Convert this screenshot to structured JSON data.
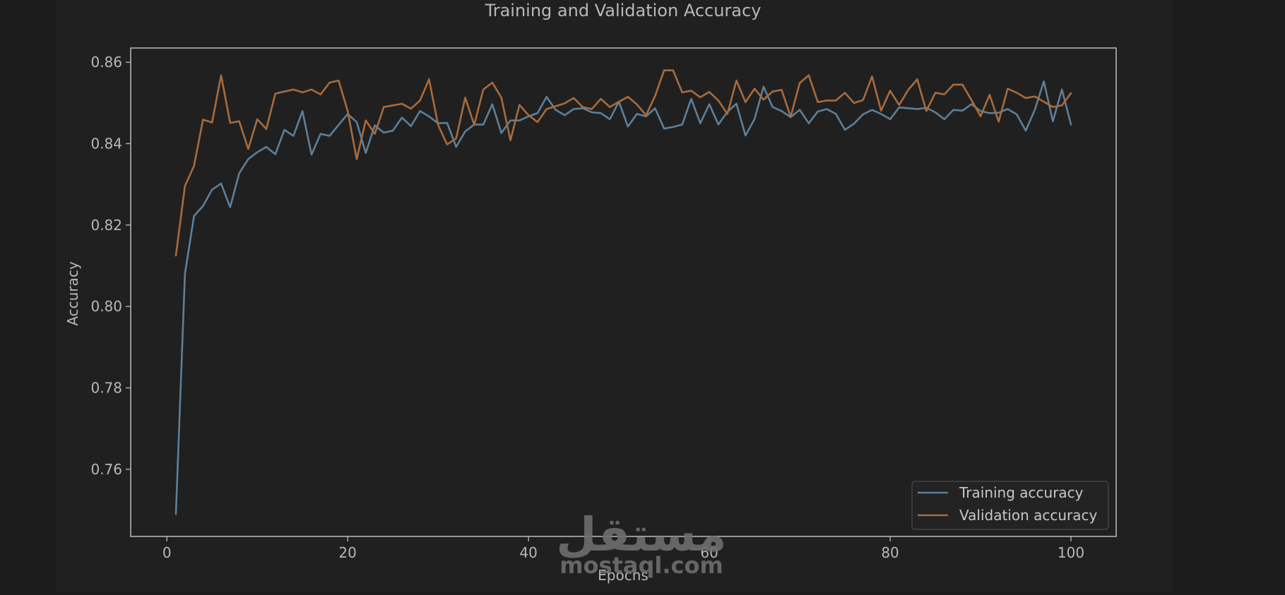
{
  "watermark": {
    "arabic": "مستقل",
    "latin": "mostaql.com"
  },
  "chart_data": {
    "type": "line",
    "title": "Training and Validation Accuracy",
    "xlabel": "Epochs",
    "ylabel": "Accuracy",
    "xlim": [
      -4,
      105
    ],
    "ylim": [
      0.7435,
      0.8635
    ],
    "xticks": [
      0,
      20,
      40,
      60,
      80,
      100
    ],
    "yticks": [
      0.76,
      0.78,
      0.8,
      0.82,
      0.84,
      0.86
    ],
    "ytick_labels": [
      "0.76",
      "0.78",
      "0.80",
      "0.82",
      "0.84",
      "0.86"
    ],
    "grid": false,
    "legend_position": "lower-right",
    "x": [
      1,
      2,
      3,
      4,
      5,
      6,
      7,
      8,
      9,
      10,
      11,
      12,
      13,
      14,
      15,
      16,
      17,
      18,
      19,
      20,
      21,
      22,
      23,
      24,
      25,
      26,
      27,
      28,
      29,
      30,
      31,
      32,
      33,
      34,
      35,
      36,
      37,
      38,
      39,
      40,
      41,
      42,
      43,
      44,
      45,
      46,
      47,
      48,
      49,
      50,
      51,
      52,
      53,
      54,
      55,
      56,
      57,
      58,
      59,
      60,
      61,
      62,
      63,
      64,
      65,
      66,
      67,
      68,
      69,
      70,
      71,
      72,
      73,
      74,
      75,
      76,
      77,
      78,
      79,
      80,
      81,
      82,
      83,
      84,
      85,
      86,
      87,
      88,
      89,
      90,
      91,
      92,
      93,
      94,
      95,
      96,
      97,
      98,
      99,
      100
    ],
    "series": [
      {
        "name": "Training accuracy",
        "color": "#5d7f99",
        "values": [
          0.749,
          0.808,
          0.8222,
          0.8247,
          0.8287,
          0.8302,
          0.8244,
          0.8327,
          0.8362,
          0.8379,
          0.8392,
          0.8374,
          0.8434,
          0.8419,
          0.848,
          0.8373,
          0.8424,
          0.8419,
          0.8446,
          0.8473,
          0.8453,
          0.8377,
          0.8445,
          0.8427,
          0.8432,
          0.8464,
          0.8443,
          0.848,
          0.8467,
          0.845,
          0.8451,
          0.8392,
          0.843,
          0.8447,
          0.8447,
          0.8497,
          0.8426,
          0.8457,
          0.8457,
          0.8467,
          0.8475,
          0.8515,
          0.8483,
          0.847,
          0.8485,
          0.8487,
          0.8477,
          0.8475,
          0.846,
          0.8503,
          0.8442,
          0.8473,
          0.8467,
          0.8487,
          0.8437,
          0.8441,
          0.8447,
          0.851,
          0.845,
          0.8497,
          0.8447,
          0.8478,
          0.8498,
          0.842,
          0.846,
          0.854,
          0.849,
          0.848,
          0.8465,
          0.8483,
          0.845,
          0.8479,
          0.8485,
          0.8473,
          0.8434,
          0.8449,
          0.8472,
          0.8483,
          0.8473,
          0.846,
          0.8489,
          0.8487,
          0.8485,
          0.8488,
          0.8477,
          0.846,
          0.8483,
          0.8481,
          0.8497,
          0.848,
          0.8475,
          0.8476,
          0.8485,
          0.8472,
          0.8432,
          0.8483,
          0.8553,
          0.8455,
          0.8533,
          0.8447
        ]
      },
      {
        "name": "Validation accuracy",
        "color": "#a86b3c",
        "values": [
          0.8125,
          0.8296,
          0.8345,
          0.8459,
          0.8452,
          0.8568,
          0.8451,
          0.8455,
          0.8387,
          0.846,
          0.8436,
          0.8523,
          0.8528,
          0.8533,
          0.8526,
          0.8533,
          0.8521,
          0.855,
          0.8555,
          0.848,
          0.8362,
          0.8457,
          0.8424,
          0.849,
          0.8494,
          0.8498,
          0.8486,
          0.8506,
          0.8558,
          0.8446,
          0.8398,
          0.8413,
          0.8513,
          0.8446,
          0.8533,
          0.855,
          0.8513,
          0.8408,
          0.8495,
          0.847,
          0.8453,
          0.8485,
          0.8492,
          0.8499,
          0.8512,
          0.849,
          0.8485,
          0.851,
          0.849,
          0.8503,
          0.8515,
          0.8496,
          0.847,
          0.8517,
          0.858,
          0.858,
          0.8526,
          0.853,
          0.8514,
          0.8527,
          0.8506,
          0.8473,
          0.8555,
          0.8502,
          0.8535,
          0.8508,
          0.8528,
          0.8532,
          0.8466,
          0.8549,
          0.8568,
          0.8502,
          0.8506,
          0.8506,
          0.8525,
          0.85,
          0.8507,
          0.8565,
          0.8481,
          0.853,
          0.8495,
          0.8532,
          0.8558,
          0.848,
          0.8525,
          0.8521,
          0.8545,
          0.8545,
          0.8507,
          0.8467,
          0.852,
          0.8454,
          0.8535,
          0.8525,
          0.8512,
          0.8516,
          0.8503,
          0.849,
          0.8494,
          0.8524
        ]
      }
    ]
  }
}
